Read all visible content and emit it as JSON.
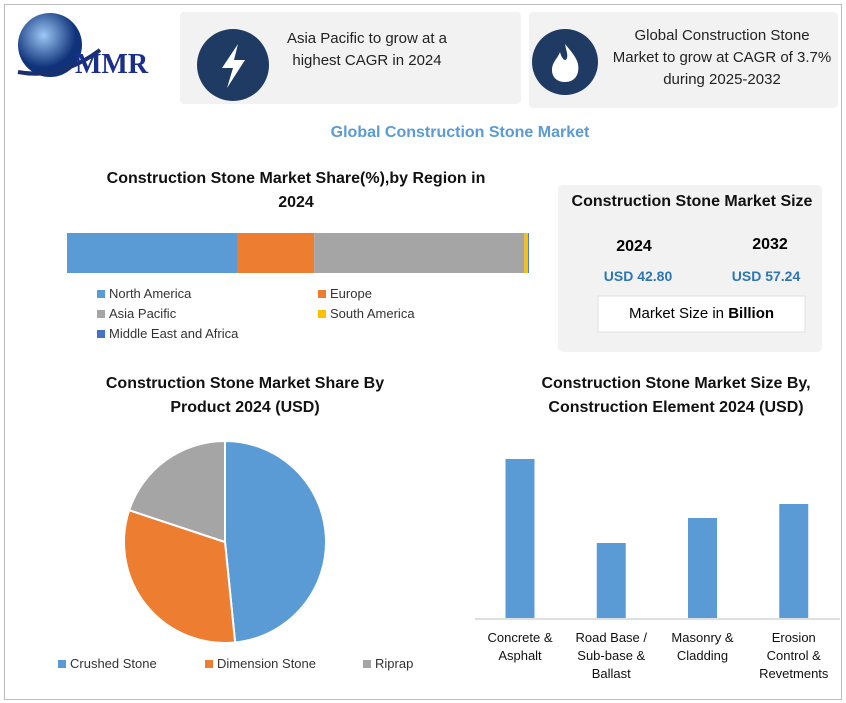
{
  "header": {
    "logo": "MMR",
    "box1": "Asia Pacific to grow at a highest CAGR in 2024",
    "box2": "Global Construction Stone Market to grow at CAGR of 3.7% during 2025-2032"
  },
  "title": "Global Construction Stone Market",
  "market_size": {
    "title": "Construction Stone Market Size",
    "years": [
      "2024",
      "2032"
    ],
    "values": [
      "USD 42.80",
      "USD 57.24"
    ],
    "note": "Market Size in ",
    "unit": "Billion"
  },
  "chart_data": [
    {
      "type": "stacked_bar",
      "title": "Construction Stone Market Share(%),by Region in 2024",
      "xlim": [
        0,
        100
      ],
      "series": [
        {
          "name": "North America",
          "color": "#5b9bd5",
          "values": [
            37
          ]
        },
        {
          "name": "Europe",
          "color": "#ed7d31",
          "values": [
            16.5
          ]
        },
        {
          "name": "Asia Pacific",
          "color": "#a5a5a5",
          "values": [
            45.5
          ]
        },
        {
          "name": "South America",
          "color": "#ffc000",
          "values": [
            0.8
          ]
        },
        {
          "name": "Middle East and Africa",
          "color": "#4472c4",
          "values": [
            0.2
          ]
        }
      ]
    },
    {
      "type": "pie",
      "title": "Construction Stone Market Share By Product 2024  (USD)",
      "categories": [
        "Crushed Stone",
        "Dimension Stone",
        "Riprap"
      ],
      "values": [
        48.4,
        31.7,
        19.9
      ],
      "colors": [
        "#5b9bd5",
        "#ed7d31",
        "#a5a5a5"
      ]
    },
    {
      "type": "bar",
      "title": "Construction Stone Market Size By, Construction Element  2024 (USD)",
      "categories": [
        "Concrete & Asphalt",
        "Road Base / Sub-base & Ballast",
        "Masonry & Cladding",
        "Erosion Control & Revetments"
      ],
      "values": [
        159,
        75,
        100,
        114
      ],
      "color": "#5b9bd5",
      "ylim": [
        0,
        170
      ]
    }
  ]
}
